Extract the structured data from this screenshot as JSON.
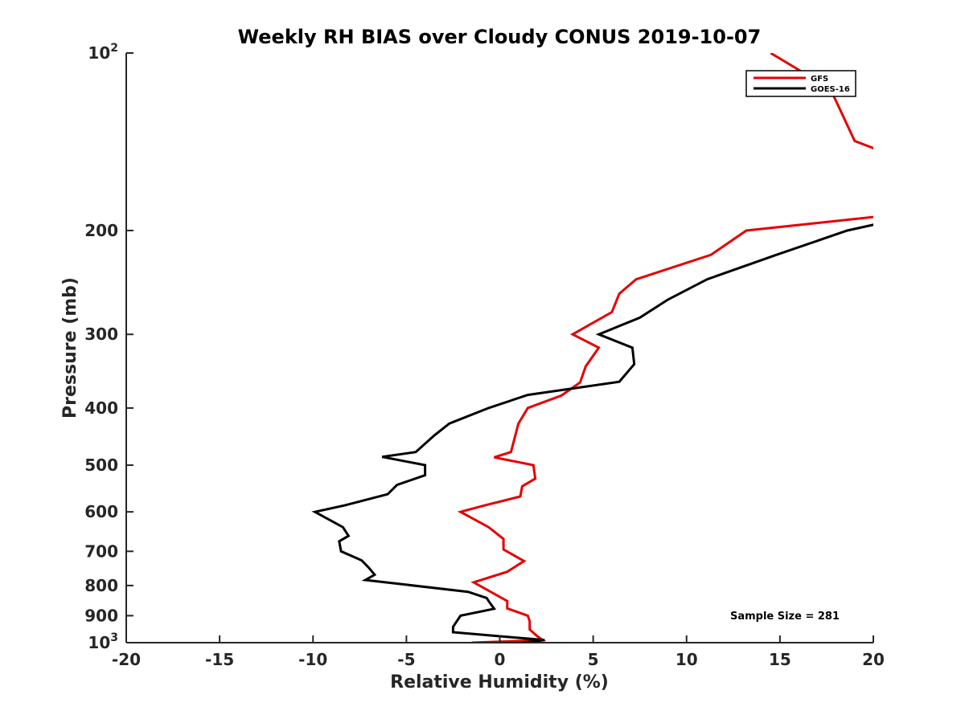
{
  "chart_data": {
    "type": "line",
    "title": "Weekly RH BIAS over Cloudy CONUS 2019-10-07",
    "xlabel": "Relative Humidity (%)",
    "ylabel": "Pressure (mb)",
    "xlim": [
      -20,
      20
    ],
    "ylim": [
      100,
      1000
    ],
    "yscale": "log",
    "y_reversed": true,
    "grid": false,
    "legend_position": "top-right",
    "x_ticks": [
      -20,
      -15,
      -10,
      -5,
      0,
      5,
      10,
      15,
      20
    ],
    "x_tick_labels": [
      "-20",
      "-15",
      "-10",
      "-5",
      "0",
      "5",
      "10",
      "15",
      "20"
    ],
    "y_ticks": [
      100,
      200,
      300,
      400,
      500,
      600,
      700,
      800,
      900,
      1000
    ],
    "y_tick_labels": [
      {
        "base": "10",
        "sup": "2"
      },
      {
        "base": "200",
        "sup": ""
      },
      {
        "base": "300",
        "sup": ""
      },
      {
        "base": "400",
        "sup": ""
      },
      {
        "base": "500",
        "sup": ""
      },
      {
        "base": "600",
        "sup": ""
      },
      {
        "base": "700",
        "sup": ""
      },
      {
        "base": "800",
        "sup": ""
      },
      {
        "base": "900",
        "sup": ""
      },
      {
        "base": "10",
        "sup": "3"
      }
    ],
    "annotation": "Sample Size = 281",
    "series": [
      {
        "name": "GFS",
        "color": "#e60000",
        "points": [
          [
            14.5,
            100
          ],
          [
            17.7,
            115
          ],
          [
            19,
            141
          ],
          [
            20.5,
            147
          ],
          [
            20.5,
            189
          ],
          [
            13.2,
            200
          ],
          [
            11.3,
            220
          ],
          [
            7.3,
            242
          ],
          [
            6.4,
            256
          ],
          [
            6,
            275
          ],
          [
            3.9,
            300
          ],
          [
            5.3,
            316
          ],
          [
            4.6,
            340
          ],
          [
            4.3,
            362
          ],
          [
            3.3,
            381
          ],
          [
            1.5,
            400
          ],
          [
            1,
            425
          ],
          [
            0.6,
            475
          ],
          [
            -0.3,
            485
          ],
          [
            1.8,
            500
          ],
          [
            1.9,
            527
          ],
          [
            1.2,
            543
          ],
          [
            1.1,
            565
          ],
          [
            -0.8,
            585
          ],
          [
            -2.1,
            600
          ],
          [
            -0.6,
            637
          ],
          [
            0.2,
            667
          ],
          [
            0.2,
            695
          ],
          [
            1.3,
            727
          ],
          [
            0.4,
            758
          ],
          [
            -1.4,
            790
          ],
          [
            0.4,
            850
          ],
          [
            0.4,
            875
          ],
          [
            1.5,
            900
          ],
          [
            1.6,
            920
          ],
          [
            1.6,
            950
          ],
          [
            2,
            975
          ],
          [
            2.3,
            990
          ],
          [
            -1.5,
            1000
          ]
        ]
      },
      {
        "name": "GOES-16",
        "color": "#000000",
        "points": [
          [
            20.5,
            194
          ],
          [
            18.6,
            200
          ],
          [
            14.8,
            220
          ],
          [
            11.1,
            242
          ],
          [
            9,
            262
          ],
          [
            7.5,
            281
          ],
          [
            5.3,
            300
          ],
          [
            7.1,
            316
          ],
          [
            7.2,
            337
          ],
          [
            6.4,
            361
          ],
          [
            1.5,
            380
          ],
          [
            -0.6,
            400
          ],
          [
            -2.7,
            425
          ],
          [
            -3.5,
            445
          ],
          [
            -4.5,
            475
          ],
          [
            -6.3,
            484
          ],
          [
            -4,
            500
          ],
          [
            -4,
            520
          ],
          [
            -5.5,
            540
          ],
          [
            -6,
            560
          ],
          [
            -8.3,
            585
          ],
          [
            -9.9,
            600
          ],
          [
            -8.4,
            637
          ],
          [
            -8.1,
            659
          ],
          [
            -8.6,
            673
          ],
          [
            -8.5,
            700
          ],
          [
            -7.4,
            725
          ],
          [
            -7,
            747
          ],
          [
            -6.7,
            767
          ],
          [
            -7.2,
            783
          ],
          [
            -1.7,
            820
          ],
          [
            -0.7,
            840
          ],
          [
            -0.6,
            850
          ],
          [
            -0.3,
            876
          ],
          [
            -2.1,
            900
          ],
          [
            -2.5,
            940
          ],
          [
            -2.5,
            960
          ],
          [
            2.4,
            990
          ],
          [
            1.2,
            1000
          ]
        ]
      }
    ]
  }
}
